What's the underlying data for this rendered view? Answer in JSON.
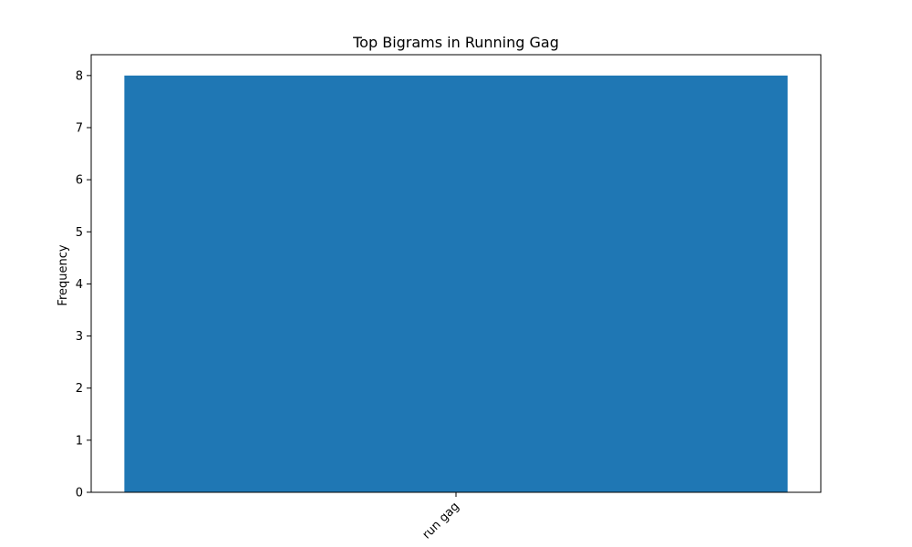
{
  "chart_data": {
    "type": "bar",
    "title": "Top Bigrams in Running Gag",
    "xlabel": "",
    "ylabel": "Frequency",
    "categories": [
      "run gag"
    ],
    "values": [
      8
    ],
    "ylim": [
      0,
      8.4
    ],
    "yticks": [
      0,
      1,
      2,
      3,
      4,
      5,
      6,
      7,
      8
    ],
    "bar_color": "#1f77b4",
    "grid": false,
    "xtick_rotation": "45"
  }
}
